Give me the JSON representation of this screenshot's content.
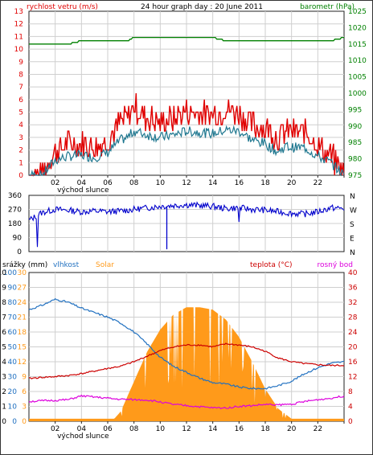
{
  "chart_data": [
    {
      "type": "line",
      "panel": "wind-pressure",
      "title": "24 hour graph day : 20 June 2011",
      "ylabel_left": "rychlost vetru (m/s)",
      "ylabel_right": "barometr (hPa)",
      "ylim_left": [
        0,
        13
      ],
      "ylim_right": [
        975,
        1025
      ],
      "yticks_left": [
        "0",
        "1",
        "2",
        "3",
        "4",
        "5",
        "6",
        "7",
        "8",
        "9",
        "10",
        "11",
        "12",
        "13"
      ],
      "yticks_right": [
        "975",
        "980",
        "985",
        "990",
        "995",
        "1000",
        "1005",
        "1010",
        "1015",
        "1020",
        "1025"
      ],
      "xticks": [
        "02",
        "04",
        "06",
        "08",
        "10",
        "12",
        "14",
        "16",
        "18",
        "20",
        "22",
        ""
      ],
      "annotation": "východ slunce",
      "x_hours": [
        0,
        1,
        2,
        3,
        4,
        5,
        6,
        7,
        7.5,
        8,
        9,
        10,
        11,
        12,
        13,
        14,
        15,
        16,
        17,
        18,
        19,
        19.5,
        20,
        21,
        22,
        23,
        24
      ],
      "series": [
        {
          "name": "wind gust",
          "color": "#e00000",
          "values": [
            0,
            0,
            2,
            2.5,
            2.5,
            2.2,
            2.8,
            4.2,
            4.5,
            5.5,
            4.5,
            4.2,
            4.5,
            5.0,
            5.0,
            4.8,
            5.2,
            5.0,
            4.0,
            3.8,
            3.0,
            3.5,
            3.5,
            3.5,
            2.5,
            1.5,
            0
          ]
        },
        {
          "name": "wind avg",
          "color": "#207890",
          "values": [
            0,
            0,
            1.2,
            1.5,
            1.6,
            1.4,
            1.8,
            2.8,
            3.0,
            3.5,
            3.2,
            3.0,
            3.2,
            3.5,
            3.4,
            3.3,
            3.6,
            3.5,
            2.8,
            2.5,
            1.8,
            2.3,
            2.2,
            2.2,
            1.5,
            1.0,
            0
          ]
        },
        {
          "name": "barometr",
          "color": "#008000",
          "values": [
            1015,
            1015,
            1015,
            1015,
            1016,
            1016,
            1016,
            1016,
            1016,
            1017,
            1017,
            1017,
            1017,
            1017,
            1017,
            1017,
            1016,
            1016,
            1016,
            1016,
            1016,
            1016,
            1016,
            1016,
            1016,
            1016,
            1017
          ]
        }
      ]
    },
    {
      "type": "line",
      "panel": "wind-direction",
      "ylim": [
        0,
        360
      ],
      "yticks_left": [
        "0",
        "90",
        "180",
        "270",
        "360"
      ],
      "yticks_right": [
        "N",
        "E",
        "S",
        "W",
        "N"
      ],
      "x_hours": [
        0,
        1,
        2,
        3,
        4,
        5,
        6,
        7,
        8,
        9,
        10,
        11,
        12,
        13,
        14,
        15,
        16,
        17,
        18,
        19,
        20,
        21,
        22,
        23,
        24
      ],
      "series": [
        {
          "name": "wind direction",
          "color": "#0000cc",
          "values": [
            200,
            250,
            270,
            265,
            255,
            260,
            255,
            260,
            270,
            280,
            290,
            295,
            300,
            295,
            290,
            275,
            280,
            270,
            265,
            255,
            245,
            240,
            255,
            280,
            275
          ]
        }
      ]
    },
    {
      "type": "area",
      "panel": "rain-humidity-solar-temp",
      "labels": {
        "rain": "srážky (mm)",
        "humidity": "vlhkost",
        "solar": "Solar",
        "temp": "teplota (°C)",
        "dew": "rosný bod"
      },
      "yticks_rain": [
        "0",
        "1",
        "2",
        "3",
        "4",
        "5",
        "6",
        "7",
        "8",
        "9",
        "10"
      ],
      "yticks_humidity": [
        "0",
        "10",
        "20",
        "30",
        "40",
        "50",
        "60",
        "70",
        "80",
        "90",
        "100"
      ],
      "yticks_solar": [
        "0",
        "3",
        "6",
        "9",
        "12",
        "15",
        "18",
        "21",
        "24",
        "27",
        "30"
      ],
      "yticks_temp": [
        "0",
        "4",
        "8",
        "12",
        "16",
        "20",
        "24",
        "28",
        "32",
        "36",
        "40"
      ],
      "xticks": [
        "02",
        "04",
        "06",
        "08",
        "10",
        "12",
        "14",
        "16",
        "18",
        "20",
        "22",
        ""
      ],
      "annotation": "východ slunce",
      "x_hours": [
        0,
        1,
        2,
        3,
        4,
        5,
        6,
        6.5,
        7,
        8,
        9,
        10,
        11,
        12,
        13,
        14,
        15,
        16,
        17,
        18,
        19,
        20,
        21,
        22,
        23,
        24
      ],
      "series": [
        {
          "name": "Solar",
          "color": "#ff9a1a",
          "values": [
            0.5,
            0.5,
            0.5,
            0.5,
            0.5,
            0.5,
            0.5,
            0.5,
            2.0,
            8.0,
            14.0,
            18.5,
            21.5,
            23.0,
            23.0,
            22.5,
            20.5,
            17.0,
            12.0,
            6.5,
            2.5,
            0.5,
            0.5,
            0.5,
            0.5,
            0.5
          ]
        },
        {
          "name": "vlhkost",
          "color": "#2070c0",
          "values": [
            75,
            78,
            82,
            80,
            76,
            73,
            70,
            68,
            66,
            60,
            52,
            43,
            37,
            33,
            29,
            26,
            25,
            23,
            22,
            22,
            24,
            27,
            32,
            36,
            39,
            40
          ]
        },
        {
          "name": "teplota",
          "color": "#cc0000",
          "values": [
            11.5,
            11.8,
            12.0,
            12.3,
            12.8,
            13.5,
            14.2,
            14.5,
            14.8,
            16,
            17.5,
            19,
            20,
            20.5,
            20.5,
            20.0,
            20.8,
            20.5,
            20,
            18.8,
            17,
            16,
            15.5,
            15.2,
            15.0,
            15.0
          ]
        },
        {
          "name": "rosný bod",
          "color": "#dd00dd",
          "values": [
            5.3,
            5.5,
            5.6,
            5.8,
            6.8,
            6.5,
            6.2,
            6.0,
            5.9,
            5.8,
            5.7,
            5.2,
            4.5,
            4.2,
            3.9,
            3.6,
            3.6,
            4.0,
            4.2,
            4.5,
            4.4,
            4.6,
            5.3,
            5.8,
            6.2,
            6.8
          ]
        }
      ]
    }
  ]
}
